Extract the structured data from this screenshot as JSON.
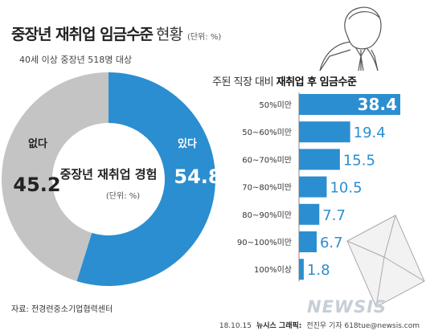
{
  "title": {
    "main": "중장년 재취업 임금수준",
    "suffix": "현황",
    "unit": "(단위: %)"
  },
  "subtitle": "40세 이상 중장년 518명 대상",
  "source": "자료: 전경련중소기업협력센터",
  "credit": {
    "date": "18.10.15",
    "agency": "뉴시스 그래픽:",
    "author": "전진우 기자 618tue@newsis.com"
  },
  "watermark": "NEWSIS",
  "icons": [
    "businessman-illustration-icon",
    "envelope-illustration-icon"
  ],
  "colors": {
    "accent": "#2b8ed0",
    "gray": "#c4c4c4",
    "text_blue": "#2b8ed0"
  },
  "chart_data": [
    {
      "type": "pie",
      "title": "중장년 재취업 경험",
      "unit": "(단위: %)",
      "slices": [
        {
          "label": "있다",
          "value": 54.8,
          "color": "#2b8ed0"
        },
        {
          "label": "없다",
          "value": 45.2,
          "color": "#c4c4c4"
        }
      ]
    },
    {
      "type": "bar",
      "orientation": "horizontal",
      "title_prefix": "주된 직장 대비",
      "title_bold": "재취업 후 임금수준",
      "categories": [
        "50%미만",
        "50~60%미만",
        "60~70%미만",
        "70~80%미만",
        "80~90%미만",
        "90~100%미만",
        "100%이상"
      ],
      "values": [
        38.4,
        19.4,
        15.5,
        10.5,
        7.7,
        6.7,
        1.8
      ],
      "xlim": [
        0,
        38.4
      ],
      "color": "#2b8ed0"
    }
  ]
}
